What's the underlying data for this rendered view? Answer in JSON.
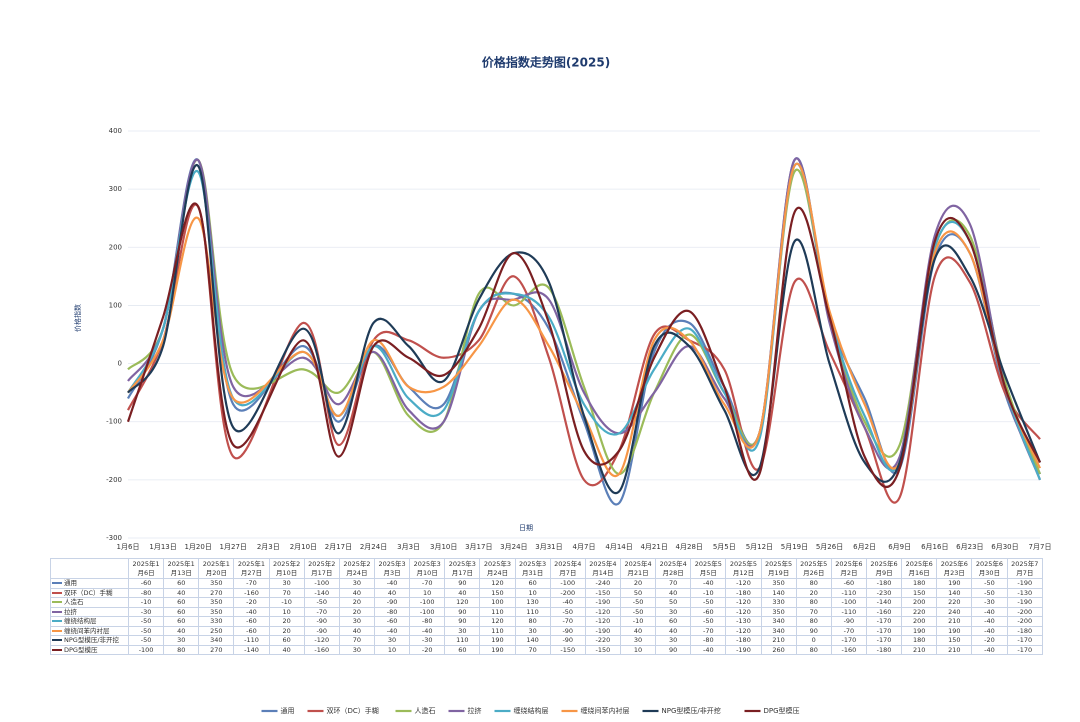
{
  "chart_data": {
    "type": "line",
    "title": "价格指数走势图(2025)",
    "y_label": "价格指数",
    "x_label": "日期",
    "x_axis_labels": [
      "1月6日",
      "1月13日",
      "1月20日",
      "1月27日",
      "2月3日",
      "2月10日",
      "2月17日",
      "2月24日",
      "3月3日",
      "3月10日",
      "3月17日",
      "3月24日",
      "3月31日",
      "4月7日",
      "4月14日",
      "4月21日",
      "4月28日",
      "5月5日",
      "5月12日",
      "5月19日",
      "5月26日",
      "6月2日",
      "6月9日",
      "6月16日",
      "6月23日",
      "6月30日",
      "7月7日"
    ],
    "categories": [
      "2025年1月6日",
      "2025年1月13日",
      "2025年1月20日",
      "2025年1月27日",
      "2025年2月10日",
      "2025年2月17日",
      "2025年2月24日",
      "2025年3月3日",
      "2025年3月10日",
      "2025年3月17日",
      "2025年3月24日",
      "2025年3月31日",
      "2025年4月7日",
      "2025年4月14日",
      "2025年4月21日",
      "2025年4月28日",
      "2025年5月5日",
      "2025年5月12日",
      "2025年5月19日",
      "2025年5月26日",
      "2025年6月2日",
      "2025年6月9日",
      "2025年6月16日",
      "2025年6月23日",
      "2025年6月30日",
      "2025年7月7日"
    ],
    "series": [
      {
        "name": "通用",
        "color": "#5b7fb8",
        "values": [
          -60,
          60,
          350,
          -70,
          30,
          -100,
          30,
          -40,
          -70,
          90,
          120,
          60,
          -100,
          -240,
          20,
          70,
          -40,
          -120,
          350,
          80,
          -60,
          -180,
          180,
          190,
          -50,
          -190
        ]
      },
      {
        "name": "双环（DC）手糊",
        "color": "#c0504d",
        "values": [
          -80,
          40,
          270,
          -160,
          70,
          -140,
          40,
          40,
          10,
          40,
          150,
          10,
          -200,
          -150,
          50,
          40,
          -10,
          -180,
          140,
          20,
          -110,
          -230,
          150,
          140,
          -50,
          -130
        ]
      },
      {
        "name": "人造石",
        "color": "#9bbb59",
        "values": [
          -10,
          60,
          350,
          -20,
          -10,
          -50,
          20,
          -90,
          -100,
          120,
          100,
          130,
          -40,
          -190,
          -50,
          50,
          -50,
          -120,
          330,
          80,
          -100,
          -140,
          200,
          220,
          -30,
          -190
        ]
      },
      {
        "name": "拉挤",
        "color": "#8064a2",
        "values": [
          -30,
          60,
          350,
          -40,
          10,
          -70,
          20,
          -80,
          -100,
          90,
          110,
          110,
          -50,
          -120,
          -50,
          30,
          -60,
          -120,
          350,
          70,
          -110,
          -160,
          220,
          240,
          -40,
          -200
        ]
      },
      {
        "name": "缠绕结构层",
        "color": "#4bacc6",
        "values": [
          -50,
          60,
          330,
          -60,
          20,
          -90,
          30,
          -60,
          -80,
          90,
          120,
          80,
          -70,
          -120,
          -10,
          60,
          -50,
          -130,
          340,
          80,
          -90,
          -170,
          200,
          210,
          -40,
          -200
        ]
      },
      {
        "name": "缠绕间苯内衬层",
        "color": "#f79646",
        "values": [
          -50,
          40,
          250,
          -60,
          20,
          -90,
          40,
          -40,
          -40,
          30,
          110,
          30,
          -90,
          -190,
          40,
          40,
          -70,
          -120,
          340,
          90,
          -70,
          -170,
          190,
          190,
          -40,
          -180
        ]
      },
      {
        "name": "NPG型模压/非开挖",
        "color": "#1f3b57",
        "values": [
          -50,
          30,
          340,
          -110,
          60,
          -120,
          70,
          30,
          -30,
          110,
          190,
          140,
          -90,
          -220,
          30,
          30,
          -80,
          -180,
          210,
          0,
          -170,
          -170,
          180,
          150,
          -20,
          -170
        ]
      },
      {
        "name": "DPG型模压",
        "color": "#7a1f22",
        "values": [
          -100,
          80,
          270,
          -140,
          40,
          -160,
          30,
          10,
          -20,
          60,
          190,
          70,
          -150,
          -150,
          10,
          90,
          -40,
          -190,
          260,
          80,
          -160,
          -180,
          210,
          210,
          -40,
          -170
        ]
      }
    ],
    "ylim": [
      -300,
      400
    ],
    "yticks": [
      -300,
      -200,
      -100,
      0,
      100,
      200,
      300,
      400
    ],
    "grid": true
  }
}
